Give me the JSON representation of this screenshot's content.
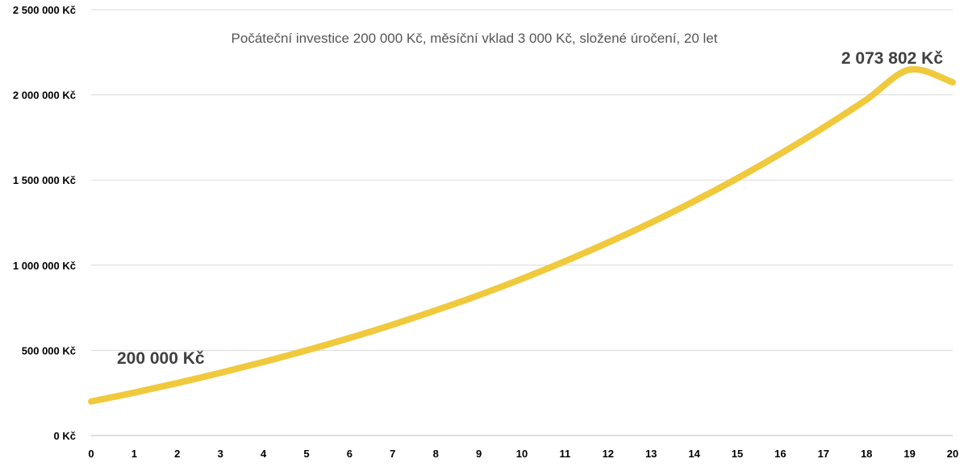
{
  "chart_data": {
    "type": "line",
    "title": "",
    "subtitle": "Počáteční investice 200 000 Kč, měsíční vklad 3 000 Kč, složené úročení, 20 let",
    "xlabel": "",
    "ylabel": "",
    "x": [
      0,
      1,
      2,
      3,
      4,
      5,
      6,
      7,
      8,
      9,
      10,
      11,
      12,
      13,
      14,
      15,
      16,
      17,
      18,
      19,
      20
    ],
    "xlim": [
      0,
      20
    ],
    "ylim": [
      0,
      2500000
    ],
    "y_ticks": [
      0,
      500000,
      1000000,
      1500000,
      2000000,
      2500000
    ],
    "y_tick_labels": [
      "0 Kč",
      "500 000 Kč",
      "1 000 000 Kč",
      "1 500 000 Kč",
      "2 000 000 Kč",
      "2 500 000 Kč"
    ],
    "x_tick_labels": [
      "0",
      "1",
      "2",
      "3",
      "4",
      "5",
      "6",
      "7",
      "8",
      "9",
      "10",
      "11",
      "12",
      "13",
      "14",
      "15",
      "16",
      "17",
      "18",
      "19",
      "20"
    ],
    "grid": true,
    "legend": "none",
    "series": [
      {
        "color": "#f0c93c",
        "values": [
          200000,
          252000,
          308000,
          368000,
          432000,
          500000,
          573000,
          651000,
          735000,
          824000,
          920000,
          1023000,
          1133000,
          1250000,
          1376000,
          1510000,
          1654000,
          1808000,
          1972000,
          2148000,
          2073802
        ]
      }
    ],
    "annotations": [
      {
        "text": "200 000 Kč",
        "x": 0
      },
      {
        "text": "2 073 802 Kč",
        "x": 20
      }
    ]
  }
}
